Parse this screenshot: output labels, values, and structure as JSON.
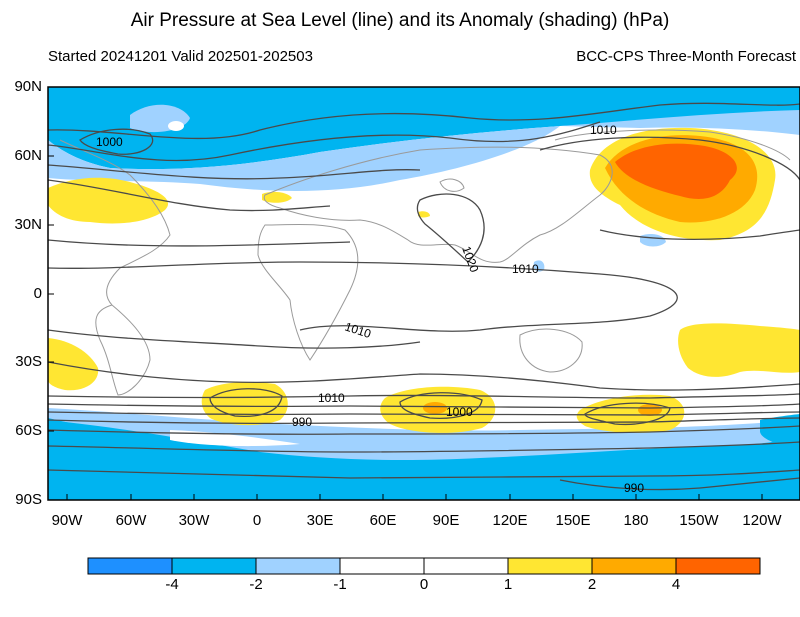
{
  "title": "Air Pressure at Sea Level (line) and its Anomaly (shading) (hPa)",
  "subtitle_left": "Started 20241201  Valid 202501-202503",
  "subtitle_right": "BCC-CPS Three-Month Forecast",
  "lat_labels": [
    "90N",
    "60N",
    "30N",
    "0",
    "30S",
    "60S",
    "90S"
  ],
  "lon_labels": [
    "90W",
    "60W",
    "30W",
    "0",
    "30E",
    "60E",
    "90E",
    "120E",
    "150E",
    "180",
    "150W",
    "120W"
  ],
  "contour_labels": [
    "1000",
    "1010",
    "1020",
    "1010",
    "1010",
    "1010",
    "990",
    "1000",
    "990"
  ],
  "colorbar": {
    "tick_labels": [
      "-4",
      "-2",
      "-1",
      "0",
      "1",
      "2",
      "4"
    ],
    "colors": [
      "#1e90ff",
      "#00b4f0",
      "#a0d2ff",
      "#ffffff",
      "#ffe632",
      "#ffaa00",
      "#ff6400"
    ]
  },
  "legend_note": ""
}
